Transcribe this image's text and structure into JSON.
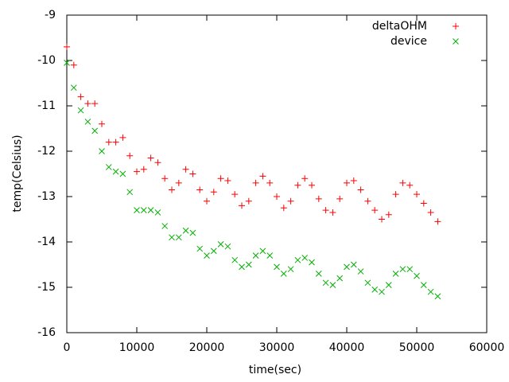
{
  "chart_data": {
    "type": "scatter",
    "xlabel": "time(sec)",
    "ylabel": "temp(Celsius)",
    "xlim": [
      0,
      60000
    ],
    "ylim": [
      -16,
      -9
    ],
    "xticks": [
      0,
      10000,
      20000,
      30000,
      40000,
      50000,
      60000
    ],
    "yticks": [
      -16,
      -15,
      -14,
      -13,
      -12,
      -11,
      -10,
      -9
    ],
    "legend": "top-right",
    "x": [
      0,
      1000,
      2000,
      3000,
      4000,
      5000,
      6000,
      7000,
      8000,
      9000,
      10000,
      11000,
      12000,
      13000,
      14000,
      15000,
      16000,
      17000,
      18000,
      19000,
      20000,
      21000,
      22000,
      23000,
      24000,
      25000,
      26000,
      27000,
      28000,
      29000,
      30000,
      31000,
      32000,
      33000,
      34000,
      35000,
      36000,
      37000,
      38000,
      39000,
      40000,
      41000,
      42000,
      43000,
      44000,
      45000,
      46000,
      47000,
      48000,
      49000,
      50000,
      51000,
      52000,
      53000
    ],
    "series": [
      {
        "name": "deltaOHM",
        "color": "#ff0000",
        "marker": "plus",
        "values": [
          -9.7,
          -10.1,
          -10.8,
          -10.95,
          -10.95,
          -11.4,
          -11.8,
          -11.8,
          -11.7,
          -12.1,
          -12.45,
          -12.4,
          -12.15,
          -12.25,
          -12.6,
          -12.85,
          -12.7,
          -12.4,
          -12.5,
          -12.85,
          -13.1,
          -12.9,
          -12.6,
          -12.65,
          -12.95,
          -13.2,
          -13.1,
          -12.7,
          -12.55,
          -12.7,
          -13.0,
          -13.25,
          -13.1,
          -12.75,
          -12.6,
          -12.75,
          -13.05,
          -13.3,
          -13.35,
          -13.05,
          -12.7,
          -12.65,
          -12.85,
          -13.1,
          -13.3,
          -13.5,
          -13.4,
          -12.95,
          -12.7,
          -12.75,
          -12.95,
          -13.15,
          -13.35,
          -13.55
        ]
      },
      {
        "name": "device",
        "color": "#00b000",
        "marker": "cross",
        "values": [
          -10.05,
          -10.6,
          -11.1,
          -11.35,
          -11.55,
          -12.0,
          -12.35,
          -12.45,
          -12.5,
          -12.9,
          -13.3,
          -13.3,
          -13.3,
          -13.35,
          -13.65,
          -13.9,
          -13.9,
          -13.75,
          -13.8,
          -14.15,
          -14.3,
          -14.2,
          -14.05,
          -14.1,
          -14.4,
          -14.55,
          -14.5,
          -14.3,
          -14.2,
          -14.3,
          -14.55,
          -14.7,
          -14.6,
          -14.4,
          -14.35,
          -14.45,
          -14.7,
          -14.9,
          -14.95,
          -14.8,
          -14.55,
          -14.5,
          -14.65,
          -14.9,
          -15.05,
          -15.1,
          -14.95,
          -14.7,
          -14.6,
          -14.6,
          -14.75,
          -14.95,
          -15.1,
          -15.2
        ]
      }
    ]
  }
}
